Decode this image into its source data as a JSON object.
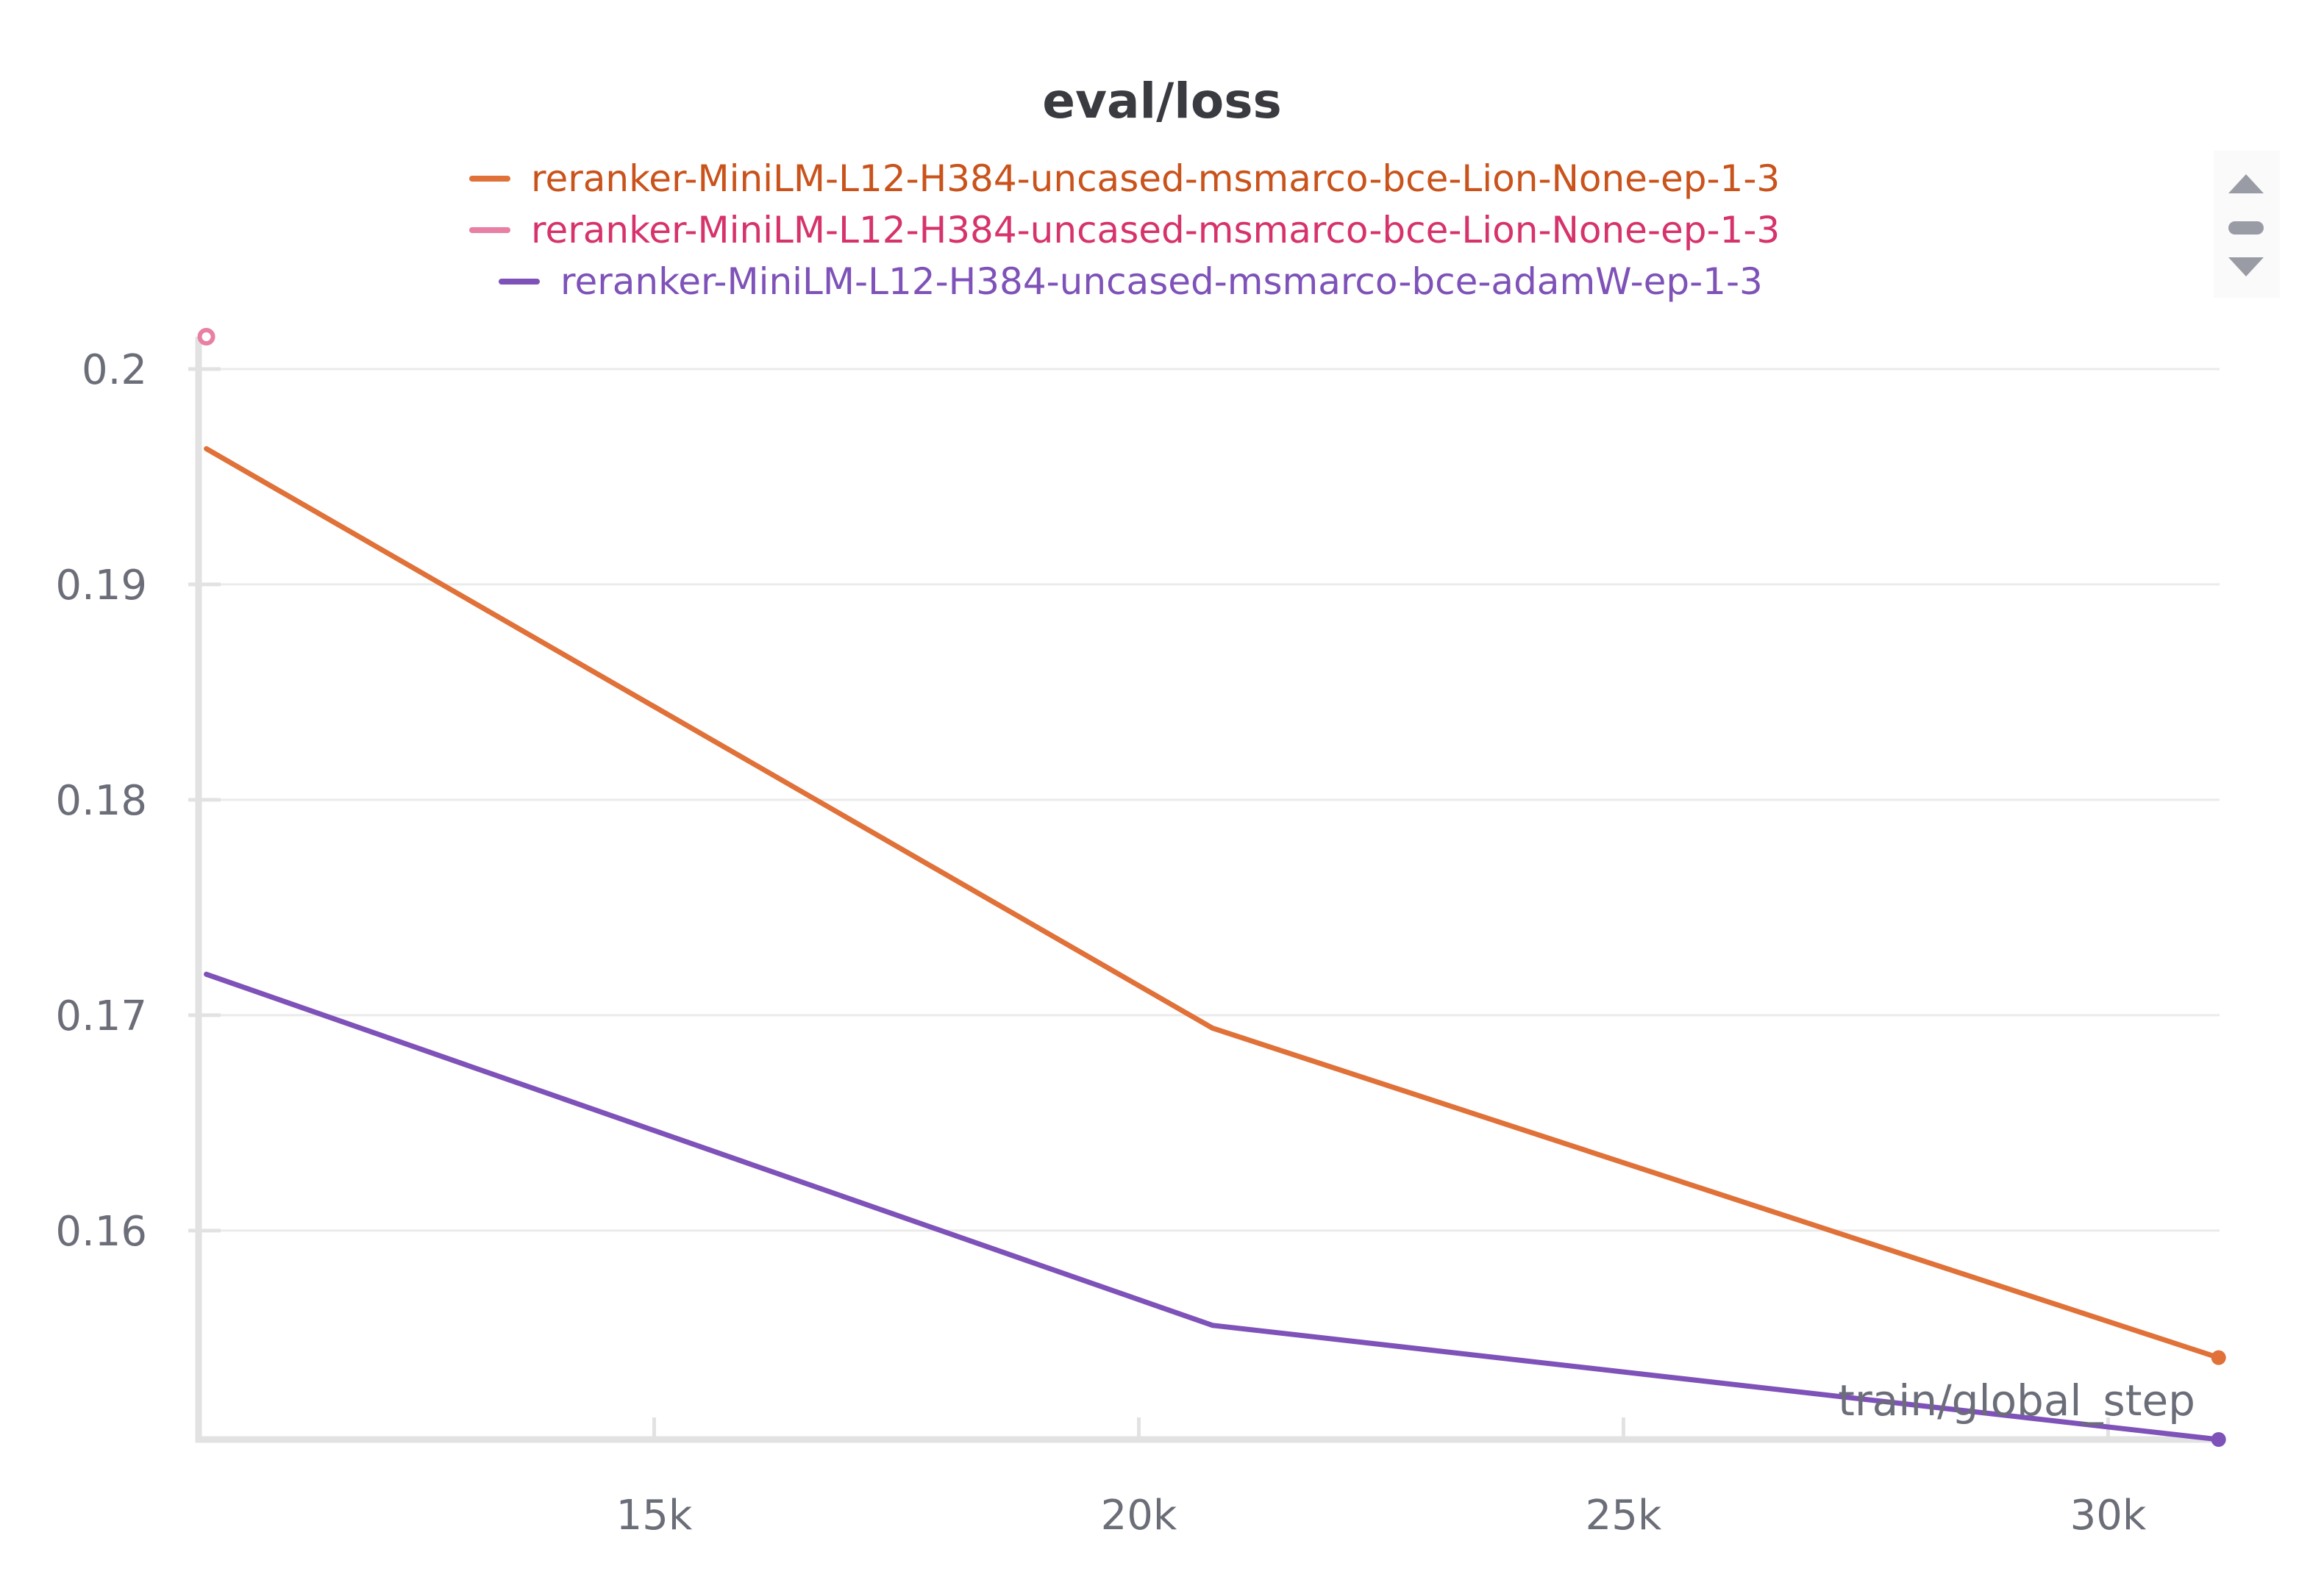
{
  "chart_data": {
    "type": "line",
    "title": "eval/loss",
    "xlabel": "train/global_step",
    "ylabel": "",
    "xlim": [
      10300,
      31150
    ],
    "ylim": [
      0.1503,
      0.2015
    ],
    "x_ticks": [
      15000,
      20000,
      25000,
      30000
    ],
    "x_tick_labels": [
      "15k",
      "20k",
      "25k",
      "30k"
    ],
    "y_ticks": [
      0.16,
      0.17,
      0.18,
      0.19,
      0.2
    ],
    "y_tick_labels": [
      "0.16",
      "0.17",
      "0.18",
      "0.19",
      "0.2"
    ],
    "grid": true,
    "legend_position": "top-center",
    "series": [
      {
        "name": "reranker-MiniLM-L12-H384-uncased-msmarco-bce-Lion-None-ep-1-3",
        "color": "#e07138",
        "text_color": "#c9531b",
        "x": [
          10380,
          20760,
          31140
        ],
        "y": [
          0.1963,
          0.1694,
          0.1541
        ]
      },
      {
        "name": "reranker-MiniLM-L12-H384-uncased-msmarco-bce-Lion-None-ep-1-3",
        "color": "#e87fa5",
        "text_color": "#d6336c",
        "x": [
          10380
        ],
        "y": [
          0.2015
        ]
      },
      {
        "name": "reranker-MiniLM-L12-H384-uncased-msmarco-bce-adamW-ep-1-3",
        "color": "#7e52b8",
        "text_color": "#7e52b8",
        "x": [
          10380,
          20760,
          31140
        ],
        "y": [
          0.1719,
          0.1556,
          0.1503
        ]
      }
    ]
  },
  "legend_scroll": {
    "up_icon": "triangle-up-icon",
    "handle_icon": "scroll-handle-icon",
    "down_icon": "triangle-down-icon"
  }
}
